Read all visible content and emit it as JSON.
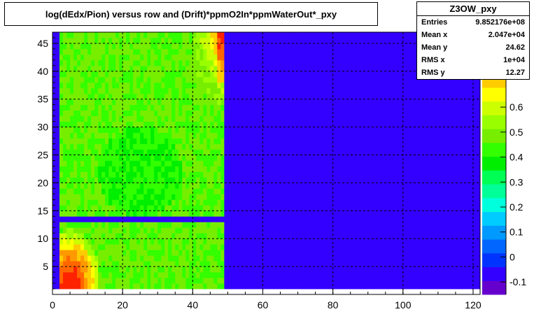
{
  "title": "log(dEdx/Pion) versus row and (Drift)*ppmO2In*ppmWaterOut*_pxy",
  "stats": {
    "name": "Z3OW_pxy",
    "rows": [
      {
        "label": "Entries",
        "value": "9.852176e+08"
      },
      {
        "label": "Mean x",
        "value": "2.047e+04"
      },
      {
        "label": "Mean y",
        "value": "24.62"
      },
      {
        "label": "RMS x",
        "value": "1e+04"
      },
      {
        "label": "RMS y",
        "value": "12.27"
      }
    ]
  },
  "chart_data": {
    "type": "heatmap",
    "title": "log(dEdx/Pion) versus row and (Drift)*ppmO2In*ppmWaterOut*_pxy",
    "xlabel": "",
    "ylabel": "",
    "xlim": [
      0,
      122
    ],
    "ylim": [
      0,
      47
    ],
    "x_ticks": [
      0,
      20,
      40,
      60,
      80,
      100,
      120
    ],
    "y_ticks": [
      5,
      10,
      15,
      20,
      25,
      30,
      35,
      40,
      45
    ],
    "grid": true,
    "z_scale": {
      "min": -0.15,
      "max": 0.9,
      "ticks": [
        -0.1,
        0,
        0.1,
        0.2,
        0.3,
        0.4,
        0.5,
        0.6
      ],
      "palette": [
        "#6600cc",
        "#3300ff",
        "#0033ff",
        "#0066ff",
        "#0099ff",
        "#00ccff",
        "#00ffdd",
        "#00ff99",
        "#00ff55",
        "#00ee00",
        "#33ff00",
        "#77ee00",
        "#99ff00",
        "#ccff00",
        "#ffff00",
        "#ffcc00",
        "#ff9900",
        "#ff6600",
        "#ff2200"
      ]
    },
    "regions": [
      {
        "x": [
          0,
          49
        ],
        "y": [
          1,
          47
        ],
        "level": 0.48,
        "description_level": "mostly green-yellow"
      },
      {
        "x": [
          49,
          122
        ],
        "y": [
          1,
          47
        ],
        "level": -0.05
      },
      {
        "x": [
          0,
          2
        ],
        "y": [
          1,
          47
        ],
        "level": -0.05
      },
      {
        "x": [
          0,
          49
        ],
        "y": [
          13,
          14.5
        ],
        "level": -0.05
      }
    ],
    "hot_spot": {
      "x": [
        2,
        14
      ],
      "y": [
        1,
        12
      ],
      "peak": 0.85
    },
    "upper_edge_band": {
      "x": [
        40,
        49
      ],
      "y": [
        38,
        47
      ],
      "peak": 0.75
    }
  }
}
